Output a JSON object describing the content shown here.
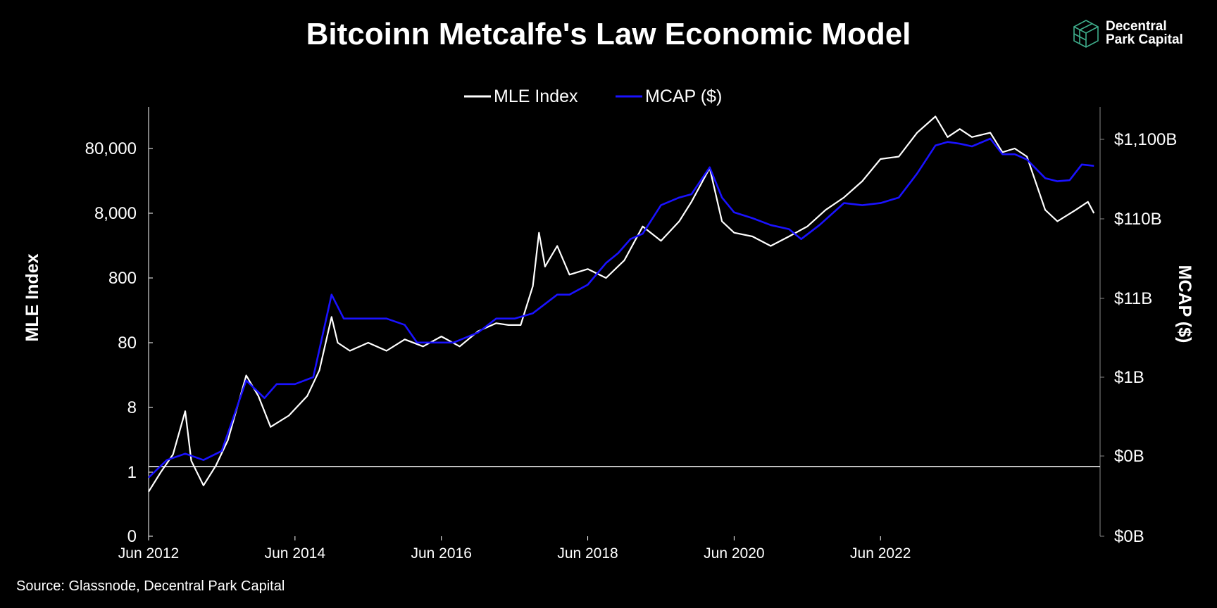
{
  "header": {
    "title": "Bitcoinn Metcalfe's Law Economic Model"
  },
  "logo": {
    "line1": "Decentral",
    "line2": "Park Capital",
    "icon": "cube-icon",
    "color": "#3fae8c"
  },
  "footer": {
    "source": "Source: Glassnode, Decentral Park Capital"
  },
  "chart_data": {
    "type": "line",
    "title": "Bitcoinn Metcalfe's Law Economic Model",
    "legend": {
      "placement": "top-center",
      "entries": [
        "MLE Index",
        "MCAP ($)"
      ]
    },
    "grid": false,
    "x_ticks": [
      "Jun 2012",
      "Jun 2014",
      "Jun 2016",
      "Jun 2018",
      "Jun 2020",
      "Jun 2022"
    ],
    "y_left": {
      "label": "MLE Index",
      "scale": "log",
      "ticks": [
        "0",
        "1",
        "8",
        "80",
        "800",
        "8,000",
        "80,000"
      ]
    },
    "y_right": {
      "label": "MCAP ($)",
      "scale": "log",
      "ticks": [
        "$0B",
        "$0B",
        "$1B",
        "$11B",
        "$110B",
        "$1,100B"
      ]
    },
    "reference_line": {
      "axis": "left",
      "value": 1
    },
    "series": [
      {
        "name": "MLE Index",
        "axis": "left",
        "color": "#ffffff",
        "points": [
          [
            "2012-06",
            0.4
          ],
          [
            "2012-08",
            0.8
          ],
          [
            "2012-10",
            1.5
          ],
          [
            "2012-12",
            7.0
          ],
          [
            "2013-01",
            1.2
          ],
          [
            "2013-03",
            0.5
          ],
          [
            "2013-05",
            1.0
          ],
          [
            "2013-07",
            2.5
          ],
          [
            "2013-10",
            25
          ],
          [
            "2013-12",
            12
          ],
          [
            "2014-02",
            4
          ],
          [
            "2014-05",
            6
          ],
          [
            "2014-08",
            12
          ],
          [
            "2014-10",
            30
          ],
          [
            "2014-12",
            200
          ],
          [
            "2015-01",
            80
          ],
          [
            "2015-03",
            60
          ],
          [
            "2015-06",
            80
          ],
          [
            "2015-09",
            60
          ],
          [
            "2015-12",
            90
          ],
          [
            "2016-03",
            70
          ],
          [
            "2016-06",
            100
          ],
          [
            "2016-09",
            70
          ],
          [
            "2016-12",
            120
          ],
          [
            "2017-03",
            160
          ],
          [
            "2017-05",
            150
          ],
          [
            "2017-07",
            150
          ],
          [
            "2017-09",
            600
          ],
          [
            "2017-10",
            4000
          ],
          [
            "2017-11",
            1200
          ],
          [
            "2018-01",
            2500
          ],
          [
            "2018-03",
            900
          ],
          [
            "2018-06",
            1100
          ],
          [
            "2018-09",
            800
          ],
          [
            "2018-12",
            1500
          ],
          [
            "2019-03",
            5000
          ],
          [
            "2019-06",
            3000
          ],
          [
            "2019-09",
            6000
          ],
          [
            "2019-11",
            12000
          ],
          [
            "2020-02",
            40000
          ],
          [
            "2020-04",
            6000
          ],
          [
            "2020-06",
            4000
          ],
          [
            "2020-09",
            3500
          ],
          [
            "2020-12",
            2500
          ],
          [
            "2021-03",
            3500
          ],
          [
            "2021-06",
            5000
          ],
          [
            "2021-09",
            9000
          ],
          [
            "2021-12",
            14000
          ],
          [
            "2022-03",
            25000
          ],
          [
            "2022-06",
            55000
          ],
          [
            "2022-09",
            60000
          ],
          [
            "2022-12",
            140000
          ],
          [
            "2023-03",
            250000
          ],
          [
            "2023-05",
            120000
          ],
          [
            "2023-07",
            160000
          ],
          [
            "2023-09",
            120000
          ],
          [
            "2023-12",
            140000
          ],
          [
            "2024-02",
            70000
          ],
          [
            "2024-04",
            80000
          ],
          [
            "2024-06",
            60000
          ],
          [
            "2024-09",
            9000
          ],
          [
            "2024-11",
            6000
          ],
          [
            "2025-02",
            9000
          ],
          [
            "2025-04",
            12000
          ],
          [
            "2025-05",
            8000
          ]
        ]
      },
      {
        "name": "MCAP ($)",
        "axis": "right",
        "color": "#1a12ff",
        "points": [
          [
            "2012-06",
            0.06
          ],
          [
            "2012-09",
            0.1
          ],
          [
            "2012-12",
            0.12
          ],
          [
            "2013-03",
            0.1
          ],
          [
            "2013-06",
            0.13
          ],
          [
            "2013-10",
            1.0
          ],
          [
            "2014-01",
            0.6
          ],
          [
            "2014-03",
            0.9
          ],
          [
            "2014-06",
            0.9
          ],
          [
            "2014-09",
            1.1
          ],
          [
            "2014-12",
            12
          ],
          [
            "2015-02",
            6
          ],
          [
            "2015-05",
            6
          ],
          [
            "2015-09",
            6
          ],
          [
            "2015-12",
            5
          ],
          [
            "2016-02",
            3
          ],
          [
            "2016-05",
            3
          ],
          [
            "2016-08",
            3
          ],
          [
            "2016-12",
            4
          ],
          [
            "2017-03",
            6
          ],
          [
            "2017-06",
            6
          ],
          [
            "2017-09",
            7
          ],
          [
            "2018-01",
            12
          ],
          [
            "2018-03",
            12
          ],
          [
            "2018-06",
            16
          ],
          [
            "2018-09",
            30
          ],
          [
            "2018-11",
            40
          ],
          [
            "2019-01",
            60
          ],
          [
            "2019-03",
            70
          ],
          [
            "2019-06",
            160
          ],
          [
            "2019-09",
            200
          ],
          [
            "2019-11",
            220
          ],
          [
            "2020-02",
            480
          ],
          [
            "2020-04",
            200
          ],
          [
            "2020-06",
            130
          ],
          [
            "2020-09",
            110
          ],
          [
            "2020-12",
            90
          ],
          [
            "2021-03",
            80
          ],
          [
            "2021-05",
            60
          ],
          [
            "2021-08",
            90
          ],
          [
            "2021-12",
            170
          ],
          [
            "2022-03",
            160
          ],
          [
            "2022-06",
            170
          ],
          [
            "2022-09",
            200
          ],
          [
            "2022-12",
            400
          ],
          [
            "2023-03",
            900
          ],
          [
            "2023-05",
            1000
          ],
          [
            "2023-07",
            950
          ],
          [
            "2023-09",
            880
          ],
          [
            "2023-12",
            1100
          ],
          [
            "2024-02",
            700
          ],
          [
            "2024-04",
            700
          ],
          [
            "2024-06",
            600
          ],
          [
            "2024-09",
            350
          ],
          [
            "2024-11",
            320
          ],
          [
            "2025-01",
            330
          ],
          [
            "2025-03",
            520
          ],
          [
            "2025-05",
            500
          ]
        ]
      }
    ]
  }
}
